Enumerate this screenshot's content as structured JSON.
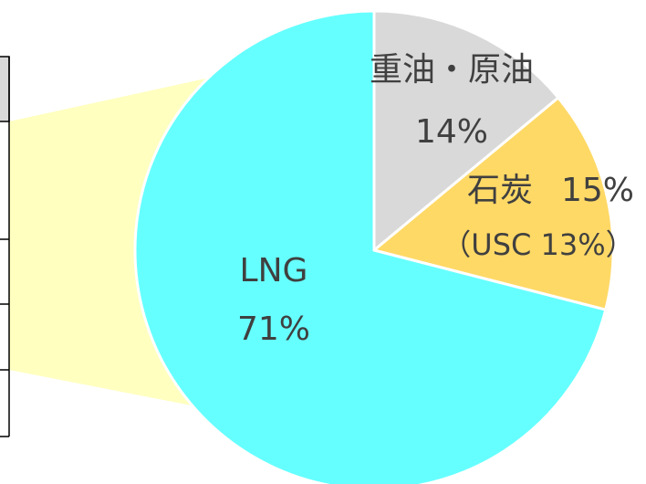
{
  "chart_data": {
    "type": "pie",
    "categories": [
      "重油・原油",
      "石炭",
      "LNG"
    ],
    "values": [
      14,
      15,
      71
    ],
    "value_labels": [
      "14%",
      "15%",
      "71%"
    ],
    "colors": [
      "#d9d9d9",
      "#ffd966",
      "#66ffff"
    ],
    "annotations": [
      "（USC 13%）"
    ]
  }
}
